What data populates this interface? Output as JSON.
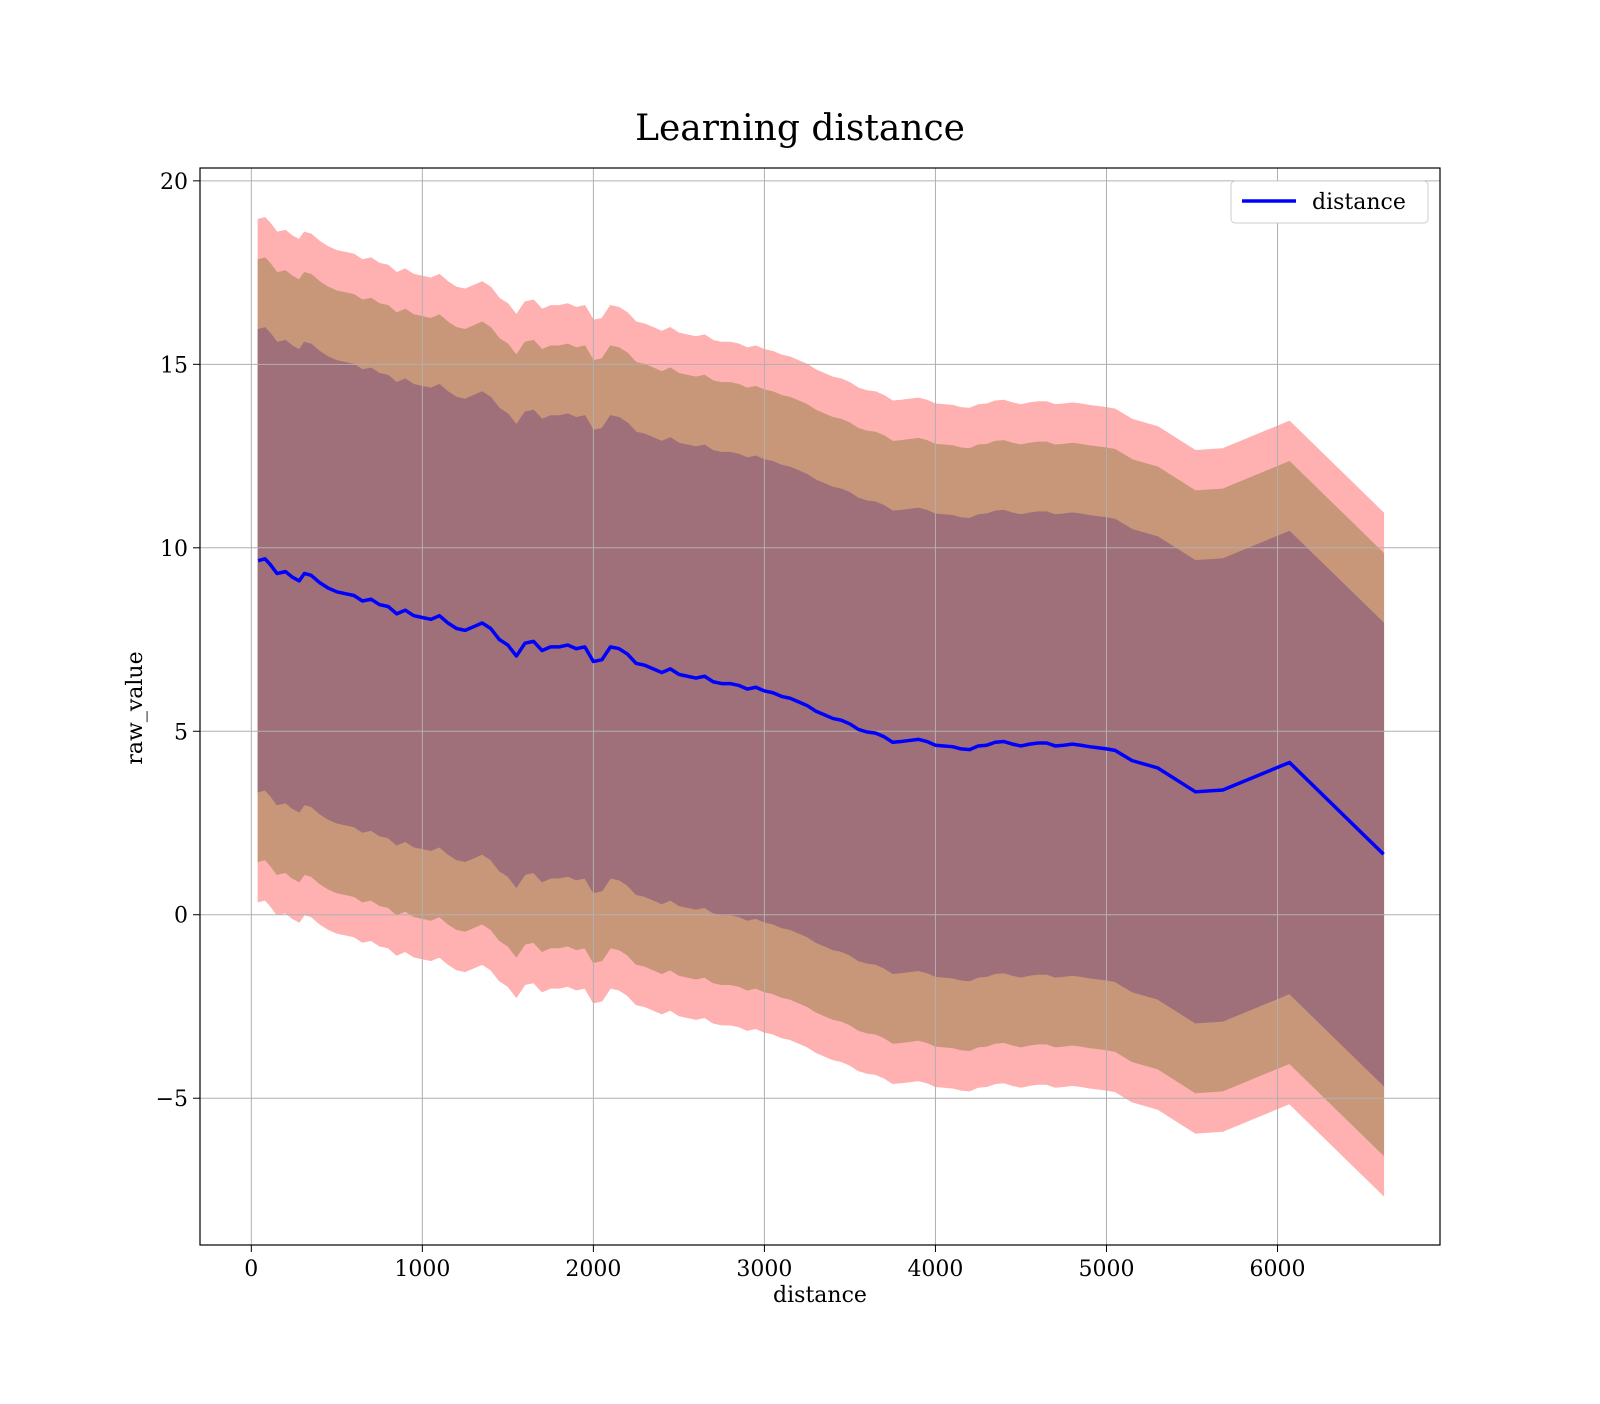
{
  "chart_data": {
    "type": "line",
    "title": "Learning distance",
    "xlabel": "distance",
    "ylabel": "raw_value",
    "xlim": [
      -300,
      6950
    ],
    "ylim": [
      -9,
      20.35
    ],
    "xticks": [
      0,
      1000,
      2000,
      3000,
      4000,
      5000,
      6000
    ],
    "yticks": [
      -5,
      0,
      5,
      10,
      15,
      20
    ],
    "ytick_labels": [
      "−5",
      "0",
      "5",
      "10",
      "15",
      "20"
    ],
    "grid": true,
    "legend": {
      "placement": "top-right",
      "entries": [
        "distance"
      ]
    },
    "series": [
      {
        "name": "distance",
        "color": "#0000ff",
        "x": [
          40,
          80,
          110,
          150,
          200,
          240,
          280,
          310,
          350,
          400,
          450,
          500,
          550,
          600,
          650,
          700,
          750,
          800,
          850,
          900,
          950,
          1000,
          1050,
          1100,
          1150,
          1200,
          1250,
          1300,
          1350,
          1400,
          1450,
          1500,
          1550,
          1600,
          1650,
          1700,
          1750,
          1800,
          1850,
          1900,
          1950,
          2000,
          2050,
          2100,
          2150,
          2200,
          2250,
          2300,
          2350,
          2400,
          2450,
          2500,
          2550,
          2600,
          2650,
          2700,
          2750,
          2800,
          2850,
          2900,
          2950,
          3000,
          3050,
          3100,
          3150,
          3200,
          3250,
          3300,
          3350,
          3400,
          3450,
          3500,
          3550,
          3600,
          3650,
          3700,
          3750,
          3800,
          3850,
          3900,
          3950,
          4000,
          4050,
          4100,
          4150,
          4200,
          4250,
          4300,
          4350,
          4400,
          4450,
          4500,
          4550,
          4600,
          4650,
          4700,
          4750,
          4800,
          4850,
          4900,
          4950,
          5000,
          5050,
          5150,
          5300,
          5520,
          5680,
          6070,
          6620
        ],
        "y": [
          9.65,
          9.7,
          9.55,
          9.3,
          9.35,
          9.2,
          9.1,
          9.3,
          9.25,
          9.05,
          8.9,
          8.8,
          8.75,
          8.7,
          8.55,
          8.6,
          8.45,
          8.4,
          8.2,
          8.3,
          8.15,
          8.1,
          8.05,
          8.15,
          7.95,
          7.8,
          7.75,
          7.85,
          7.95,
          7.8,
          7.5,
          7.35,
          7.05,
          7.4,
          7.45,
          7.2,
          7.3,
          7.3,
          7.35,
          7.25,
          7.3,
          6.9,
          6.95,
          7.3,
          7.25,
          7.1,
          6.85,
          6.8,
          6.7,
          6.6,
          6.7,
          6.55,
          6.5,
          6.45,
          6.5,
          6.35,
          6.3,
          6.3,
          6.25,
          6.15,
          6.2,
          6.1,
          6.05,
          5.95,
          5.9,
          5.8,
          5.7,
          5.55,
          5.45,
          5.35,
          5.3,
          5.2,
          5.05,
          4.98,
          4.95,
          4.85,
          4.7,
          4.72,
          4.75,
          4.78,
          4.72,
          4.62,
          4.6,
          4.58,
          4.52,
          4.5,
          4.6,
          4.62,
          4.7,
          4.72,
          4.65,
          4.6,
          4.65,
          4.68,
          4.68,
          4.6,
          4.62,
          4.65,
          4.62,
          4.58,
          4.55,
          4.52,
          4.48,
          4.2,
          4.0,
          3.35,
          3.4,
          4.15,
          1.65
        ]
      }
    ],
    "bands": {
      "std1": {
        "fill": "#a0707a",
        "half_width": 6.3
      },
      "std2": {
        "fill": "#c8977a",
        "half_width": 8.2
      },
      "std3": {
        "fill": "#ffb0b0",
        "half_width": 9.3
      }
    }
  }
}
